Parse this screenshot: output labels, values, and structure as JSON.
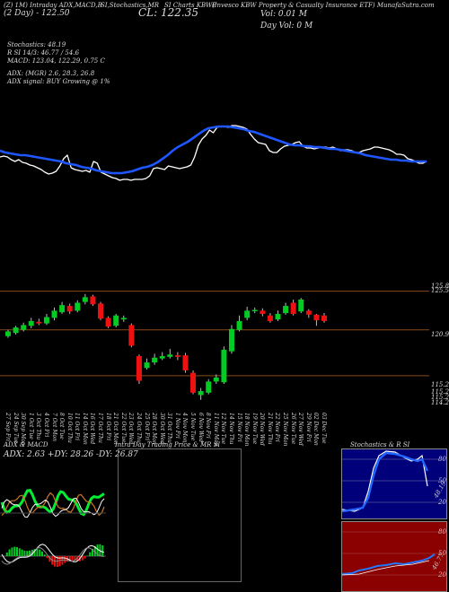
{
  "header": {
    "line1": [
      "(Z) 1M) Intraday ADX,MACD,B",
      "SI,Stochastics,MR",
      "SI Charts KBWP",
      "(Invesco  KBW Property & Casualty Insurance  ETF) MunafaSutra.com"
    ],
    "ma_line": "(2  Day) - 122.50",
    "close": "CL: 122.35",
    "vol": "Vol: 0.01 M",
    "day_vol": "Day Vol: 0   M"
  },
  "indicators": {
    "stochastics": "Stochastics: 48.19",
    "rsi": "R                   SI 14/3: 46.77 / 54.6",
    "macd": "MACD: 123.04, 122.29, 0.75 C",
    "adx": "ADX:                                    (MGR) 2.6, 28.3, 26.8",
    "adx_signal": "ADX  signal:                                BUY Growing @ 1%"
  },
  "price_axis": [
    "125.85",
    "125.59",
    "120.99",
    "115.23",
    "115.23",
    "115.25",
    "114.27"
  ],
  "dates": [
    "27 Sep Fri",
    "24 Sep Tue",
    "30 Sep Mon",
    "1 Oct Tue",
    "3 Oct Thu",
    "4 Oct Fri",
    "7 Oct Mon",
    "8 Oct Tue",
    "10 Oct Thu",
    "11 Oct Fri",
    "14 Oct Mon",
    "16 Oct Wed",
    "17 Oct Thu",
    "18 Oct Fri",
    "21 Oct Mon",
    "22 Oct Tue",
    "23 Oct Wed",
    "24 Oct Thu",
    "25 Oct Fri",
    "28 Oct Mon",
    "30 Oct Wed",
    "31 Oct Thu",
    "1 Nov Fri",
    "4 Nov Mon",
    "5 Nov Tue",
    "6 Nov Wed",
    "8 Nov Fri",
    "11 Nov Mon",
    "12 Nov Tue",
    "14 Nov Thu",
    "15 Nov Fri",
    "18 Nov Mon",
    "19 Nov Tue",
    "20 Nov Wed",
    "21 Nov Thu",
    "22 Nov Fri",
    "25 Nov Mon",
    "26 Nov Tue",
    "27 Nov Wed",
    "29 Nov Fri",
    "02 Dec Mon",
    "03 Dec Tue"
  ],
  "bottom_panels": {
    "adx_title": "ADX  & MACD",
    "adx_values": "ADX: 2.63  +DY: 28.26  -DY: 26.87",
    "intraday_title": "Intra  Day Trading Price  & MR                    SI",
    "stoch_title": "Stochastics & R                   SI",
    "stoch_labels": [
      "80",
      "50",
      "20"
    ],
    "stoch_val": "48.19",
    "rsi_labels": [
      "80",
      "50",
      "20"
    ],
    "rsi_val": "46.77"
  },
  "chart_data": {
    "type": "candlestick",
    "title": "KBWP",
    "candles": [
      {
        "o": 120.2,
        "c": 120.8,
        "h": 121.0,
        "l": 120.0
      },
      {
        "o": 120.6,
        "c": 121.3,
        "h": 121.5,
        "l": 120.4
      },
      {
        "o": 121.0,
        "c": 121.6,
        "h": 121.9,
        "l": 120.8
      },
      {
        "o": 121.5,
        "c": 122.1,
        "h": 122.5,
        "l": 121.2
      },
      {
        "o": 122.0,
        "c": 121.8,
        "h": 122.4,
        "l": 121.6
      },
      {
        "o": 121.8,
        "c": 122.6,
        "h": 123.0,
        "l": 121.6
      },
      {
        "o": 122.5,
        "c": 123.4,
        "h": 123.8,
        "l": 122.2
      },
      {
        "o": 123.2,
        "c": 124.1,
        "h": 124.5,
        "l": 123.0
      },
      {
        "o": 124.0,
        "c": 123.3,
        "h": 124.3,
        "l": 123.0
      },
      {
        "o": 123.4,
        "c": 124.4,
        "h": 124.7,
        "l": 123.2
      },
      {
        "o": 124.5,
        "c": 125.1,
        "h": 125.5,
        "l": 124.2
      },
      {
        "o": 125.2,
        "c": 124.2,
        "h": 125.4,
        "l": 124.0
      },
      {
        "o": 124.3,
        "c": 122.4,
        "h": 124.5,
        "l": 122.2
      },
      {
        "o": 122.5,
        "c": 121.4,
        "h": 122.7,
        "l": 121.2
      },
      {
        "o": 121.5,
        "c": 122.8,
        "h": 123.0,
        "l": 121.3
      },
      {
        "o": 122.3,
        "c": 122.5,
        "h": 122.8,
        "l": 122.0
      },
      {
        "o": 121.6,
        "c": 119.0,
        "h": 121.8,
        "l": 118.8
      },
      {
        "o": 117.7,
        "c": 114.6,
        "h": 117.9,
        "l": 114.2
      },
      {
        "o": 116.2,
        "c": 116.9,
        "h": 117.4,
        "l": 116.0
      },
      {
        "o": 116.9,
        "c": 117.5,
        "h": 118.0,
        "l": 116.6
      },
      {
        "o": 117.4,
        "c": 117.7,
        "h": 118.2,
        "l": 117.2
      },
      {
        "o": 117.6,
        "c": 117.9,
        "h": 118.6,
        "l": 117.4
      },
      {
        "o": 117.8,
        "c": 117.6,
        "h": 118.2,
        "l": 117.2
      },
      {
        "o": 117.8,
        "c": 115.9,
        "h": 118.1,
        "l": 115.6
      },
      {
        "o": 115.6,
        "c": 113.1,
        "h": 115.9,
        "l": 112.9
      },
      {
        "o": 112.8,
        "c": 113.3,
        "h": 113.7,
        "l": 112.2
      },
      {
        "o": 113.1,
        "c": 114.5,
        "h": 114.8,
        "l": 112.9
      },
      {
        "o": 114.5,
        "c": 115.0,
        "h": 115.4,
        "l": 114.2
      },
      {
        "o": 114.4,
        "c": 118.5,
        "h": 118.9,
        "l": 114.2
      },
      {
        "o": 118.3,
        "c": 121.1,
        "h": 121.6,
        "l": 118.0
      },
      {
        "o": 121.0,
        "c": 122.1,
        "h": 122.8,
        "l": 120.8
      },
      {
        "o": 122.5,
        "c": 123.4,
        "h": 123.9,
        "l": 122.2
      },
      {
        "o": 123.4,
        "c": 123.5,
        "h": 123.8,
        "l": 123.1
      },
      {
        "o": 123.4,
        "c": 123.0,
        "h": 123.7,
        "l": 122.7
      },
      {
        "o": 122.8,
        "c": 122.1,
        "h": 123.1,
        "l": 121.9
      },
      {
        "o": 122.3,
        "c": 123.0,
        "h": 123.4,
        "l": 122.1
      },
      {
        "o": 123.1,
        "c": 124.0,
        "h": 124.4,
        "l": 122.9
      },
      {
        "o": 124.4,
        "c": 123.0,
        "h": 124.8,
        "l": 122.8
      },
      {
        "o": 123.3,
        "c": 124.8,
        "h": 125.0,
        "l": 123.1
      },
      {
        "o": 123.4,
        "c": 122.9,
        "h": 123.6,
        "l": 122.5
      },
      {
        "o": 122.9,
        "c": 122.2,
        "h": 123.0,
        "l": 121.5
      },
      {
        "o": 122.8,
        "c": 122.1,
        "h": 123.1,
        "l": 121.9
      }
    ],
    "ylim": [
      111.5,
      127.5
    ],
    "hlines": [
      125.85,
      120.99,
      115.23
    ],
    "price_line": [
      75,
      76,
      75,
      72,
      70,
      72,
      69,
      68,
      66,
      65,
      63,
      61,
      58,
      56,
      57,
      59,
      65,
      73,
      77,
      63,
      61,
      60,
      59,
      60,
      58,
      70,
      68,
      58,
      56,
      54,
      52,
      51,
      49,
      50,
      50,
      49,
      50,
      50,
      50,
      51,
      54,
      62,
      63,
      62,
      61,
      65,
      64,
      63,
      62,
      63,
      64,
      66,
      75,
      88,
      95,
      99,
      105,
      102,
      108,
      109,
      109,
      108,
      110,
      110,
      109,
      108,
      106,
      100,
      95,
      91,
      90,
      89,
      82,
      80,
      80,
      84,
      87,
      88,
      89,
      91,
      92,
      87,
      85,
      85,
      84,
      85,
      86,
      86,
      85,
      86,
      84,
      82,
      83,
      83,
      82,
      80,
      80,
      82,
      83,
      84,
      86,
      86,
      85,
      84,
      83,
      81,
      78,
      78,
      77,
      73,
      72,
      70,
      68,
      68,
      70
    ],
    "ma_line": [
      82,
      80,
      79,
      78,
      77,
      77,
      76,
      75,
      74,
      73,
      72,
      71,
      70,
      68,
      67,
      66,
      64,
      63,
      62,
      60,
      59,
      58,
      57,
      57,
      57,
      58,
      59,
      61,
      63,
      64,
      66,
      69,
      73,
      77,
      82,
      86,
      89,
      92,
      96,
      100,
      104,
      107,
      108,
      109,
      109,
      109,
      108,
      107,
      106,
      104,
      103,
      101,
      99,
      97,
      95,
      93,
      91,
      89,
      88,
      88,
      87,
      87,
      86,
      86,
      85,
      84,
      84,
      83,
      82,
      81,
      80,
      79,
      77,
      76,
      75,
      74,
      73,
      72,
      72,
      71,
      71,
      70,
      70,
      70,
      70
    ]
  }
}
